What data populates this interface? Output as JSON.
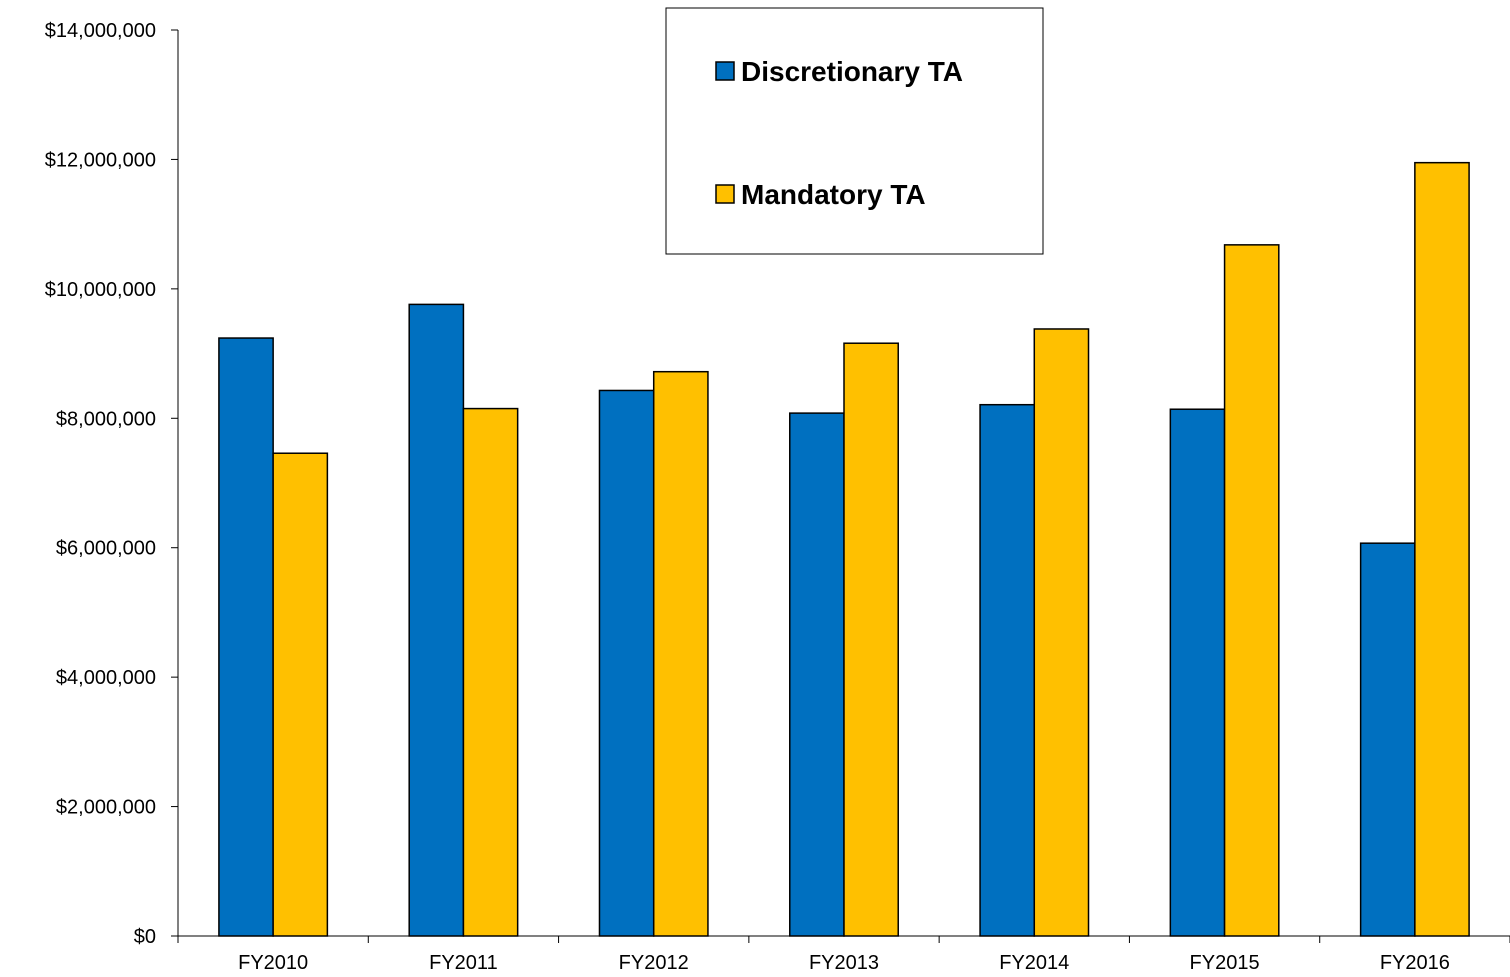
{
  "chart_data": {
    "type": "bar",
    "title": "",
    "xlabel": "",
    "ylabel": "",
    "categories": [
      "FY2010",
      "FY2011",
      "FY2012",
      "FY2013",
      "FY2014",
      "FY2015",
      "FY2016"
    ],
    "series": [
      {
        "name": "Discretionary TA",
        "color": "#0070C0",
        "values": [
          9240000,
          9760000,
          8430000,
          8080000,
          8210000,
          8140000,
          6070000
        ]
      },
      {
        "name": "Mandatory TA",
        "color": "#FFC000",
        "values": [
          7460000,
          8150000,
          8720000,
          9160000,
          9380000,
          10680000,
          11950000
        ]
      }
    ],
    "ylim": [
      0,
      14000000
    ],
    "yticks": [
      0,
      2000000,
      4000000,
      6000000,
      8000000,
      10000000,
      12000000,
      14000000
    ],
    "ytick_labels": [
      "$0",
      "$2,000,000",
      "$4,000,000",
      "$6,000,000",
      "$8,000,000",
      "$10,000,000",
      "$12,000,000",
      "$14,000,000"
    ],
    "grid": false,
    "legend_position": "top-center"
  }
}
